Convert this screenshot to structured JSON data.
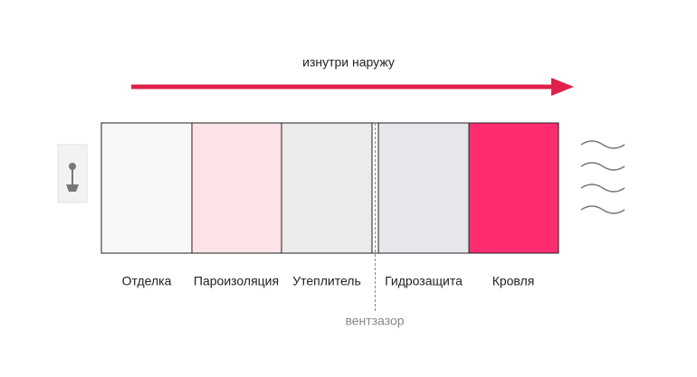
{
  "direction_label": "изнутри наружу",
  "layers": [
    {
      "label": "Отделка"
    },
    {
      "label": "Пароизоляция"
    },
    {
      "label": "Утеплитель"
    },
    {
      "label": "Гидрозащита"
    },
    {
      "label": "Кровля"
    }
  ],
  "gap_label": "вентзазор"
}
